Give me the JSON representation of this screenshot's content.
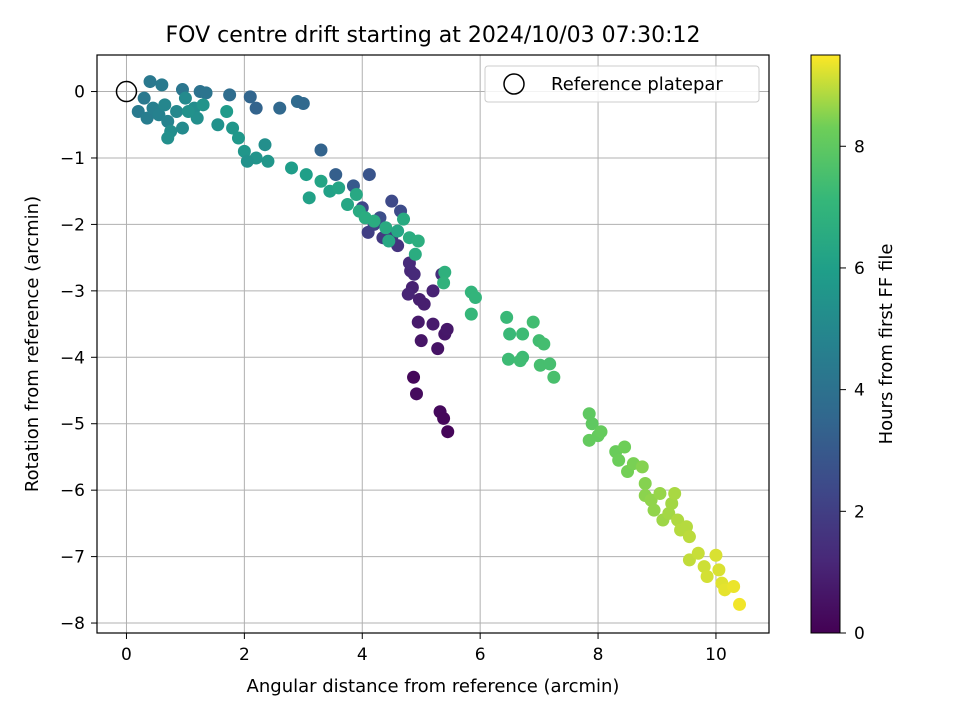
{
  "chart_data": {
    "type": "scatter",
    "title": "FOV centre drift starting at 2024/10/03 07:30:12",
    "xlabel": "Angular distance from reference (arcmin)",
    "ylabel": "Rotation from reference (arcmin)",
    "xlim": [
      -0.5,
      10.9
    ],
    "ylim": [
      -8.15,
      0.55
    ],
    "xticks": [
      0,
      2,
      4,
      6,
      8,
      10
    ],
    "yticks": [
      0,
      -1,
      -2,
      -3,
      -4,
      -5,
      -6,
      -7,
      -8
    ],
    "grid": true,
    "legend": {
      "position": "top-right",
      "entries": [
        "Reference platepar"
      ]
    },
    "reference_point": {
      "x": 0,
      "y": 0,
      "label": "Reference platepar"
    },
    "colorbar": {
      "label": "Hours from first FF file",
      "min": 0,
      "max": 9.5,
      "ticks": [
        0,
        2,
        4,
        6,
        8
      ],
      "colormap": "viridis"
    },
    "series": [
      {
        "points": [
          {
            "x": 4.87,
            "y": -4.3,
            "t": 0.2
          },
          {
            "x": 4.92,
            "y": -4.55,
            "t": 0.3
          },
          {
            "x": 5.32,
            "y": -4.82,
            "t": 0.25
          },
          {
            "x": 5.38,
            "y": -4.92,
            "t": 0.2
          },
          {
            "x": 5.45,
            "y": -5.12,
            "t": 0.15
          },
          {
            "x": 5.0,
            "y": -3.75,
            "t": 0.6
          },
          {
            "x": 5.28,
            "y": -3.87,
            "t": 0.55
          },
          {
            "x": 5.4,
            "y": -3.65,
            "t": 0.65
          },
          {
            "x": 5.44,
            "y": -3.58,
            "t": 0.7
          },
          {
            "x": 4.95,
            "y": -3.47,
            "t": 0.75
          },
          {
            "x": 5.2,
            "y": -3.5,
            "t": 0.8
          },
          {
            "x": 5.05,
            "y": -3.2,
            "t": 0.9
          },
          {
            "x": 4.97,
            "y": -3.13,
            "t": 0.9
          },
          {
            "x": 4.85,
            "y": -2.95,
            "t": 1.0
          },
          {
            "x": 4.78,
            "y": -3.05,
            "t": 1.1
          },
          {
            "x": 5.2,
            "y": -3.0,
            "t": 1.05
          },
          {
            "x": 4.82,
            "y": -2.7,
            "t": 1.2
          },
          {
            "x": 4.8,
            "y": -2.58,
            "t": 1.3
          },
          {
            "x": 4.88,
            "y": -2.75,
            "t": 1.25
          },
          {
            "x": 5.35,
            "y": -2.75,
            "t": 1.4
          },
          {
            "x": 4.6,
            "y": -2.32,
            "t": 1.6
          },
          {
            "x": 4.5,
            "y": -2.2,
            "t": 1.7
          },
          {
            "x": 4.35,
            "y": -2.2,
            "t": 1.8
          },
          {
            "x": 4.1,
            "y": -2.12,
            "t": 2.0
          },
          {
            "x": 4.2,
            "y": -2.0,
            "t": 2.1
          },
          {
            "x": 4.0,
            "y": -1.75,
            "t": 2.3
          },
          {
            "x": 4.5,
            "y": -1.65,
            "t": 2.4
          },
          {
            "x": 4.65,
            "y": -1.8,
            "t": 2.5
          },
          {
            "x": 4.3,
            "y": -1.9,
            "t": 2.6
          },
          {
            "x": 4.12,
            "y": -1.25,
            "t": 2.8
          },
          {
            "x": 3.85,
            "y": -1.42,
            "t": 3.0
          },
          {
            "x": 3.55,
            "y": -1.25,
            "t": 3.2
          },
          {
            "x": 3.3,
            "y": -0.88,
            "t": 3.4
          },
          {
            "x": 2.6,
            "y": -0.25,
            "t": 3.6
          },
          {
            "x": 2.9,
            "y": -0.15,
            "t": 3.7
          },
          {
            "x": 3.0,
            "y": -0.18,
            "t": 3.6
          },
          {
            "x": 2.1,
            "y": -0.08,
            "t": 3.5
          },
          {
            "x": 2.2,
            "y": -0.25,
            "t": 3.4
          },
          {
            "x": 1.75,
            "y": -0.05,
            "t": 3.8
          },
          {
            "x": 1.25,
            "y": 0.0,
            "t": 4.0
          },
          {
            "x": 1.35,
            "y": -0.02,
            "t": 4.1
          },
          {
            "x": 0.95,
            "y": 0.03,
            "t": 4.2
          },
          {
            "x": 0.4,
            "y": 0.15,
            "t": 4.3
          },
          {
            "x": 0.6,
            "y": 0.1,
            "t": 4.4
          },
          {
            "x": 0.3,
            "y": -0.1,
            "t": 4.3
          },
          {
            "x": 0.2,
            "y": -0.3,
            "t": 4.4
          },
          {
            "x": 0.35,
            "y": -0.4,
            "t": 4.5
          },
          {
            "x": 0.45,
            "y": -0.25,
            "t": 4.6
          },
          {
            "x": 0.55,
            "y": -0.35,
            "t": 4.7
          },
          {
            "x": 0.7,
            "y": -0.45,
            "t": 4.8
          },
          {
            "x": 0.65,
            "y": -0.2,
            "t": 4.9
          },
          {
            "x": 0.85,
            "y": -0.3,
            "t": 5.0
          },
          {
            "x": 1.0,
            "y": -0.1,
            "t": 5.1
          },
          {
            "x": 1.15,
            "y": -0.25,
            "t": 5.2
          },
          {
            "x": 1.2,
            "y": -0.4,
            "t": 5.3
          },
          {
            "x": 0.95,
            "y": -0.55,
            "t": 5.1
          },
          {
            "x": 0.75,
            "y": -0.6,
            "t": 5.2
          },
          {
            "x": 0.7,
            "y": -0.7,
            "t": 5.3
          },
          {
            "x": 1.05,
            "y": -0.3,
            "t": 5.4
          },
          {
            "x": 1.3,
            "y": -0.2,
            "t": 5.5
          },
          {
            "x": 1.55,
            "y": -0.5,
            "t": 5.4
          },
          {
            "x": 1.8,
            "y": -0.55,
            "t": 5.6
          },
          {
            "x": 1.9,
            "y": -0.7,
            "t": 5.7
          },
          {
            "x": 2.0,
            "y": -0.9,
            "t": 5.6
          },
          {
            "x": 2.2,
            "y": -1.0,
            "t": 5.5
          },
          {
            "x": 2.05,
            "y": -1.05,
            "t": 5.4
          },
          {
            "x": 2.35,
            "y": -0.8,
            "t": 5.3
          },
          {
            "x": 2.4,
            "y": -1.05,
            "t": 5.6
          },
          {
            "x": 1.7,
            "y": -0.3,
            "t": 5.8
          },
          {
            "x": 2.8,
            "y": -1.15,
            "t": 5.9
          },
          {
            "x": 3.05,
            "y": -1.25,
            "t": 6.0
          },
          {
            "x": 3.1,
            "y": -1.6,
            "t": 6.1
          },
          {
            "x": 3.3,
            "y": -1.35,
            "t": 6.2
          },
          {
            "x": 3.45,
            "y": -1.5,
            "t": 6.1
          },
          {
            "x": 3.6,
            "y": -1.45,
            "t": 6.2
          },
          {
            "x": 3.75,
            "y": -1.7,
            "t": 6.3
          },
          {
            "x": 3.9,
            "y": -1.55,
            "t": 6.4
          },
          {
            "x": 3.95,
            "y": -1.8,
            "t": 6.5
          },
          {
            "x": 4.05,
            "y": -1.9,
            "t": 6.6
          },
          {
            "x": 4.2,
            "y": -1.95,
            "t": 6.6
          },
          {
            "x": 4.4,
            "y": -2.05,
            "t": 6.5
          },
          {
            "x": 4.45,
            "y": -2.25,
            "t": 6.4
          },
          {
            "x": 4.6,
            "y": -2.1,
            "t": 6.3
          },
          {
            "x": 4.7,
            "y": -1.92,
            "t": 6.5
          },
          {
            "x": 4.8,
            "y": -2.2,
            "t": 6.6
          },
          {
            "x": 4.95,
            "y": -2.25,
            "t": 6.7
          },
          {
            "x": 4.9,
            "y": -2.45,
            "t": 6.6
          },
          {
            "x": 5.4,
            "y": -2.72,
            "t": 6.8
          },
          {
            "x": 5.38,
            "y": -2.88,
            "t": 6.9
          },
          {
            "x": 5.85,
            "y": -3.02,
            "t": 7.0
          },
          {
            "x": 5.92,
            "y": -3.1,
            "t": 7.0
          },
          {
            "x": 5.85,
            "y": -3.35,
            "t": 7.1
          },
          {
            "x": 6.45,
            "y": -3.4,
            "t": 7.2
          },
          {
            "x": 6.5,
            "y": -3.65,
            "t": 7.2
          },
          {
            "x": 6.48,
            "y": -4.03,
            "t": 7.3
          },
          {
            "x": 6.72,
            "y": -4.0,
            "t": 7.3
          },
          {
            "x": 6.72,
            "y": -3.65,
            "t": 7.3
          },
          {
            "x": 6.68,
            "y": -4.05,
            "t": 7.35
          },
          {
            "x": 6.9,
            "y": -3.47,
            "t": 7.4
          },
          {
            "x": 7.0,
            "y": -3.75,
            "t": 7.4
          },
          {
            "x": 7.08,
            "y": -3.8,
            "t": 7.45
          },
          {
            "x": 7.02,
            "y": -4.12,
            "t": 7.5
          },
          {
            "x": 7.18,
            "y": -4.1,
            "t": 7.5
          },
          {
            "x": 7.25,
            "y": -4.3,
            "t": 7.55
          },
          {
            "x": 7.85,
            "y": -4.85,
            "t": 8.0
          },
          {
            "x": 7.9,
            "y": -5.0,
            "t": 8.0
          },
          {
            "x": 7.85,
            "y": -5.25,
            "t": 8.1
          },
          {
            "x": 8.0,
            "y": -5.18,
            "t": 8.1
          },
          {
            "x": 8.05,
            "y": -5.12,
            "t": 8.15
          },
          {
            "x": 8.3,
            "y": -5.42,
            "t": 8.2
          },
          {
            "x": 8.35,
            "y": -5.55,
            "t": 8.25
          },
          {
            "x": 8.45,
            "y": -5.35,
            "t": 8.3
          },
          {
            "x": 8.5,
            "y": -5.72,
            "t": 8.35
          },
          {
            "x": 8.6,
            "y": -5.6,
            "t": 8.4
          },
          {
            "x": 8.75,
            "y": -5.65,
            "t": 8.5
          },
          {
            "x": 8.8,
            "y": -5.9,
            "t": 8.5
          },
          {
            "x": 8.8,
            "y": -6.08,
            "t": 8.55
          },
          {
            "x": 8.9,
            "y": -6.15,
            "t": 8.6
          },
          {
            "x": 8.95,
            "y": -6.3,
            "t": 8.6
          },
          {
            "x": 9.05,
            "y": -6.05,
            "t": 8.65
          },
          {
            "x": 9.1,
            "y": -6.45,
            "t": 8.7
          },
          {
            "x": 9.2,
            "y": -6.35,
            "t": 8.75
          },
          {
            "x": 9.25,
            "y": -6.2,
            "t": 8.75
          },
          {
            "x": 9.3,
            "y": -6.05,
            "t": 8.8
          },
          {
            "x": 9.35,
            "y": -6.45,
            "t": 8.85
          },
          {
            "x": 9.4,
            "y": -6.6,
            "t": 8.9
          },
          {
            "x": 9.5,
            "y": -6.55,
            "t": 8.9
          },
          {
            "x": 9.55,
            "y": -6.7,
            "t": 8.95
          },
          {
            "x": 9.55,
            "y": -7.05,
            "t": 9.0
          },
          {
            "x": 9.7,
            "y": -6.95,
            "t": 9.05
          },
          {
            "x": 9.8,
            "y": -7.15,
            "t": 9.1
          },
          {
            "x": 9.85,
            "y": -7.3,
            "t": 9.15
          },
          {
            "x": 10.0,
            "y": -6.98,
            "t": 9.2
          },
          {
            "x": 10.05,
            "y": -7.2,
            "t": 9.2
          },
          {
            "x": 10.1,
            "y": -7.4,
            "t": 9.25
          },
          {
            "x": 10.15,
            "y": -7.5,
            "t": 9.3
          },
          {
            "x": 10.3,
            "y": -7.45,
            "t": 9.35
          },
          {
            "x": 10.4,
            "y": -7.72,
            "t": 9.4
          }
        ]
      }
    ]
  }
}
